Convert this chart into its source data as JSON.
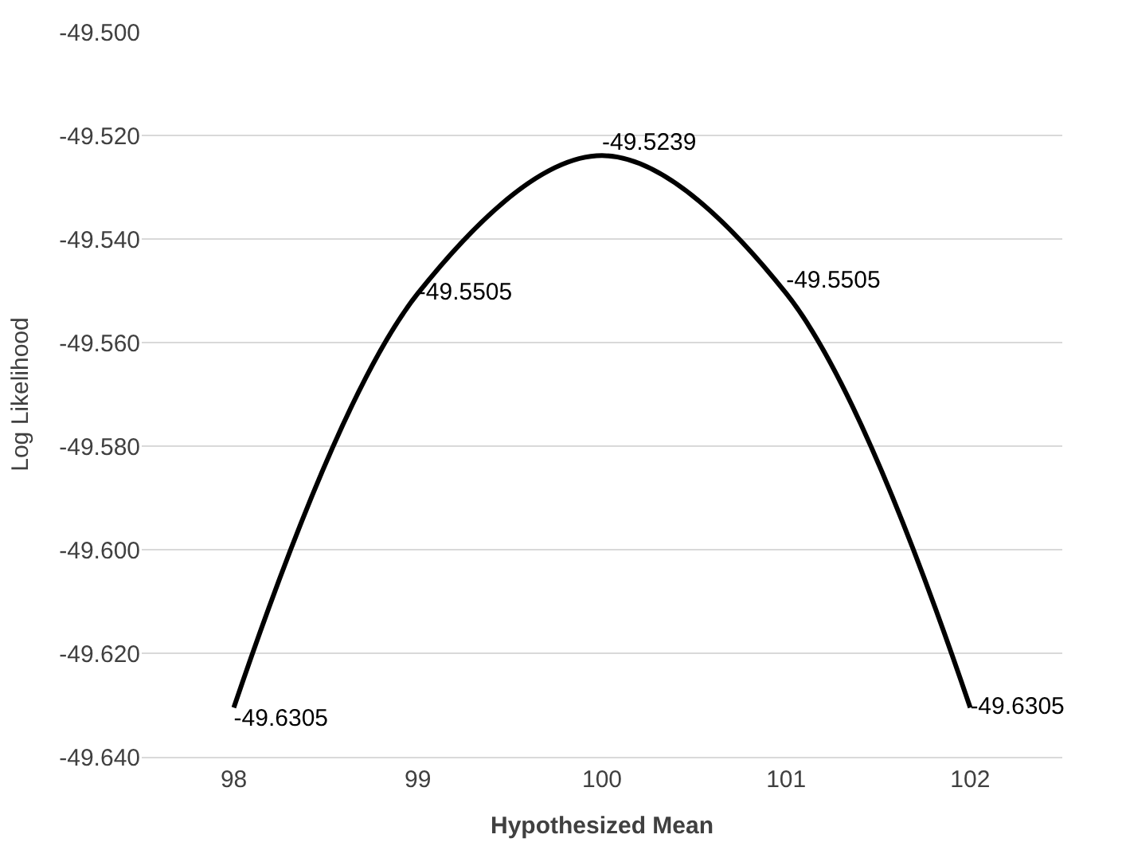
{
  "chart_data": {
    "type": "line",
    "xlabel": "Hypothesized Mean",
    "ylabel": "Log Likelihood",
    "categories": [
      "98",
      "99",
      "100",
      "101",
      "102"
    ],
    "series": [
      {
        "color": "#000000",
        "values": [
          -49.6305,
          -49.5505,
          -49.5239,
          -49.5505,
          -49.6305
        ]
      }
    ],
    "data_labels": true,
    "ylim": [
      -49.64,
      -49.5
    ],
    "yticks": [
      {
        "value": -49.64,
        "label": "-49.640"
      },
      {
        "value": -49.62,
        "label": "-49.620"
      },
      {
        "value": -49.6,
        "label": "-49.600"
      },
      {
        "value": -49.58,
        "label": "-49.580"
      },
      {
        "value": -49.56,
        "label": "-49.560"
      },
      {
        "value": -49.54,
        "label": "-49.540"
      },
      {
        "value": -49.52,
        "label": "-49.520"
      },
      {
        "value": -49.5,
        "label": "-49.500"
      }
    ],
    "grid": "y",
    "marker": "none",
    "line_style": "solid"
  }
}
